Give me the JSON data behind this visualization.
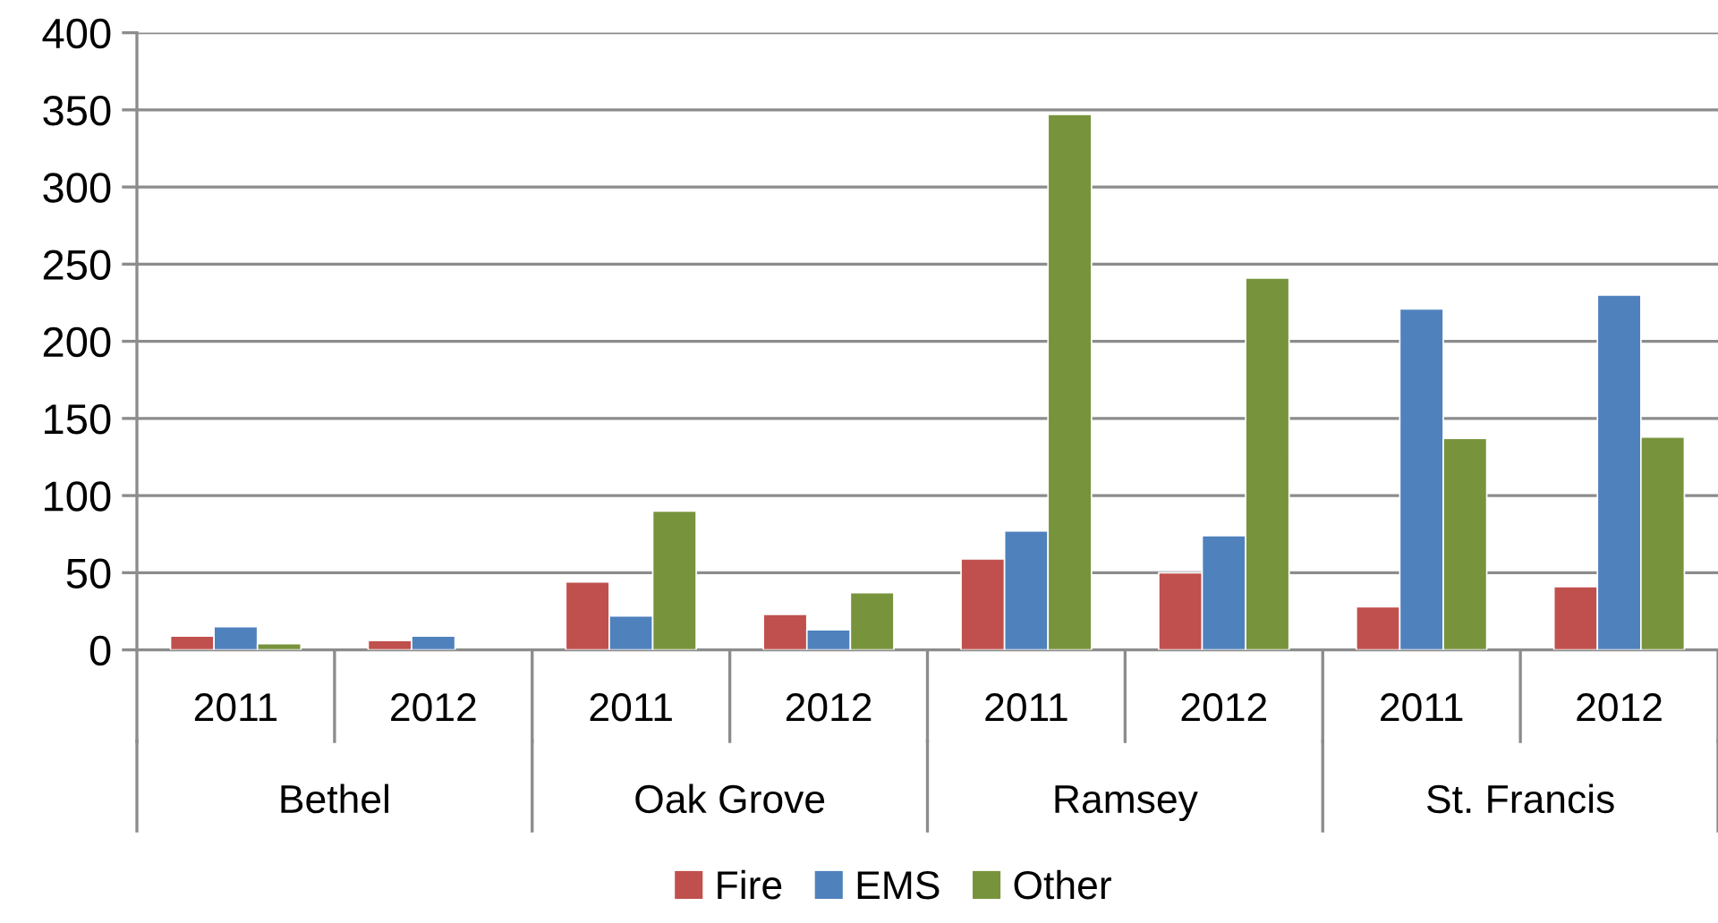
{
  "chart_data": {
    "type": "bar",
    "categories": [
      "2011",
      "2012",
      "2011",
      "2012",
      "2011",
      "2012",
      "2011",
      "2012"
    ],
    "annotations": [
      "Bethel",
      "Oak Grove",
      "Ramsey",
      "St. Francis"
    ],
    "series": [
      {
        "name": "Fire",
        "color": "#c0504d",
        "values": [
          9,
          6,
          44,
          23,
          59,
          50,
          28,
          41
        ]
      },
      {
        "name": "EMS",
        "color": "#4f81bd",
        "values": [
          15,
          9,
          22,
          13,
          77,
          74,
          221,
          230
        ]
      },
      {
        "name": "Other",
        "color": "#77933c",
        "values": [
          4,
          null,
          90,
          37,
          347,
          241,
          137,
          138
        ]
      }
    ],
    "ylim": [
      0,
      400
    ],
    "yticks": [
      0,
      50,
      100,
      150,
      200,
      250,
      300,
      350,
      400
    ],
    "grid": "y",
    "legend": "bottom"
  }
}
